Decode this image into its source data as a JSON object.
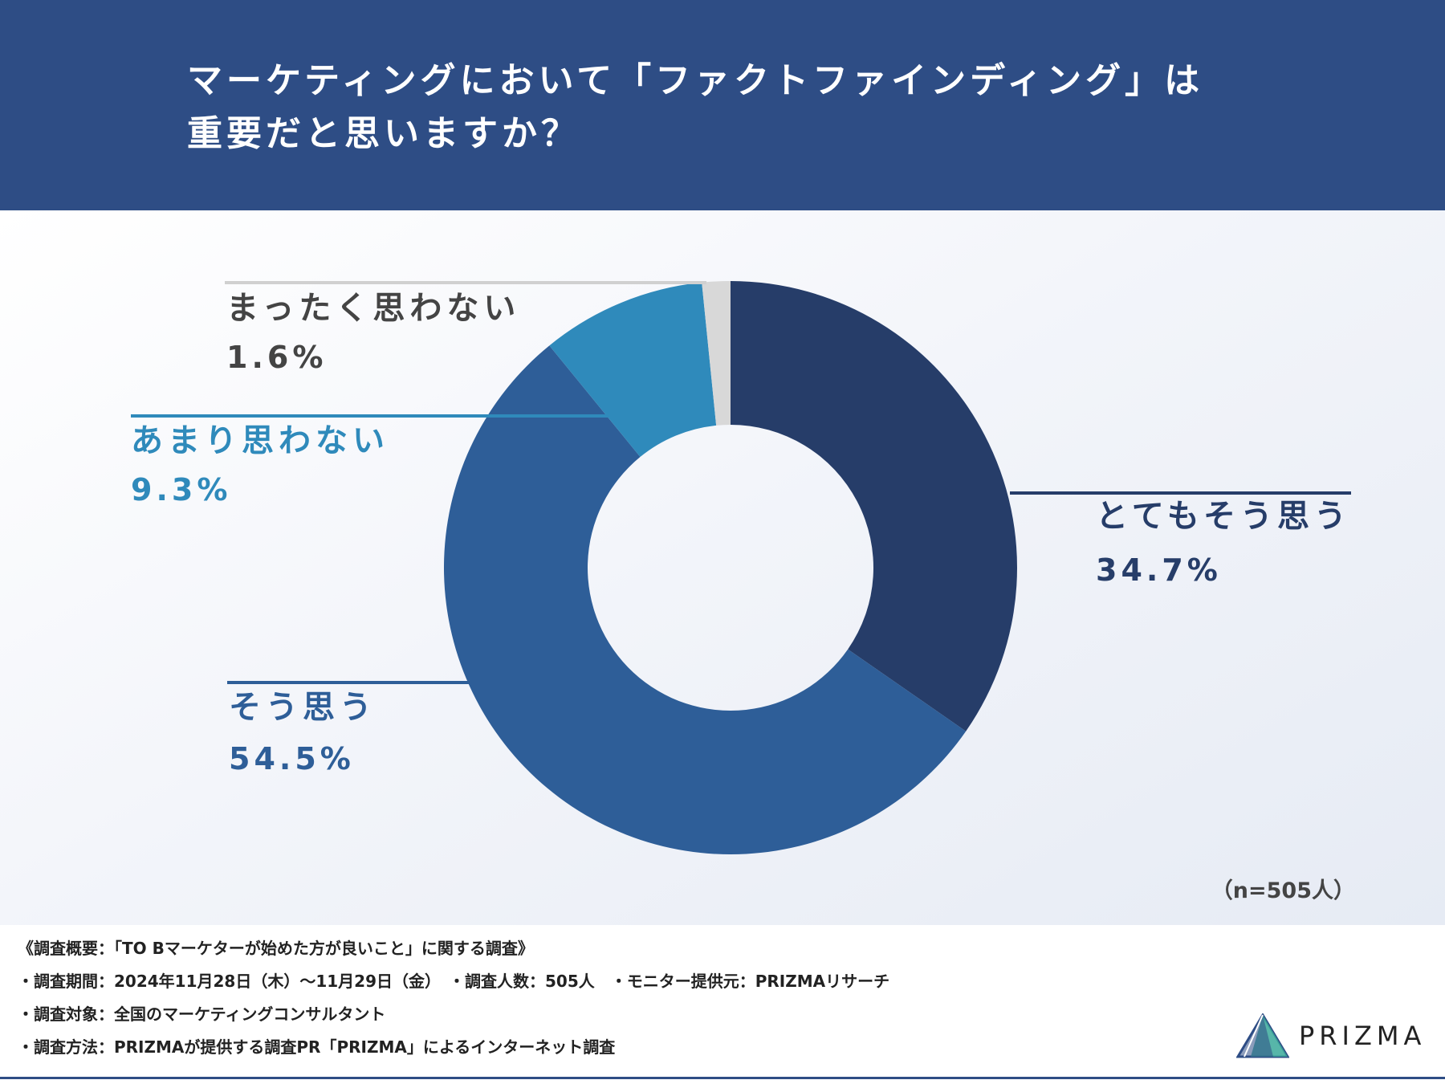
{
  "chart_data": {
    "type": "pie",
    "title": "マーケティングにおいて「ファクトファインディング」は重要だと思いますか？",
    "title_lines": [
      "マーケティングにおいて「ファクトファインディング」は",
      "重要だと思いますか？"
    ],
    "categories": [
      "とてもそう思う",
      "そう思う",
      "あまり思わない",
      "まったく思わない"
    ],
    "values": [
      34.7,
      54.5,
      9.3,
      1.6
    ],
    "value_labels": [
      "34.7%",
      "54.5%",
      "9.3%",
      "1.6%"
    ],
    "colors": [
      "#263d69",
      "#2e5e98",
      "#2f8abb",
      "#d8d8d8"
    ],
    "label_colors": [
      "#263d69",
      "#2e5e98",
      "#2f8abb",
      "#444444"
    ],
    "donut": true,
    "start": "top",
    "direction": "clockwise",
    "note": "（n=505人）"
  },
  "footer": {
    "survey_lines": [
      "《調査概要：「TO Bマーケターが始めた方が良いこと」に関する調査》",
      "・調査期間：2024年11月28日（木）～11月29日（金）　・調査人数：505人　・モニター提供元：PRIZMAリサーチ",
      "・調査対象：全国のマーケティングコンサルタント",
      "・調査方法：PRIZMAが提供する調査PR「PRIZMA」によるインターネット調査"
    ],
    "logo_text": "PRIZMA",
    "accent_color": "#2e4d85"
  }
}
